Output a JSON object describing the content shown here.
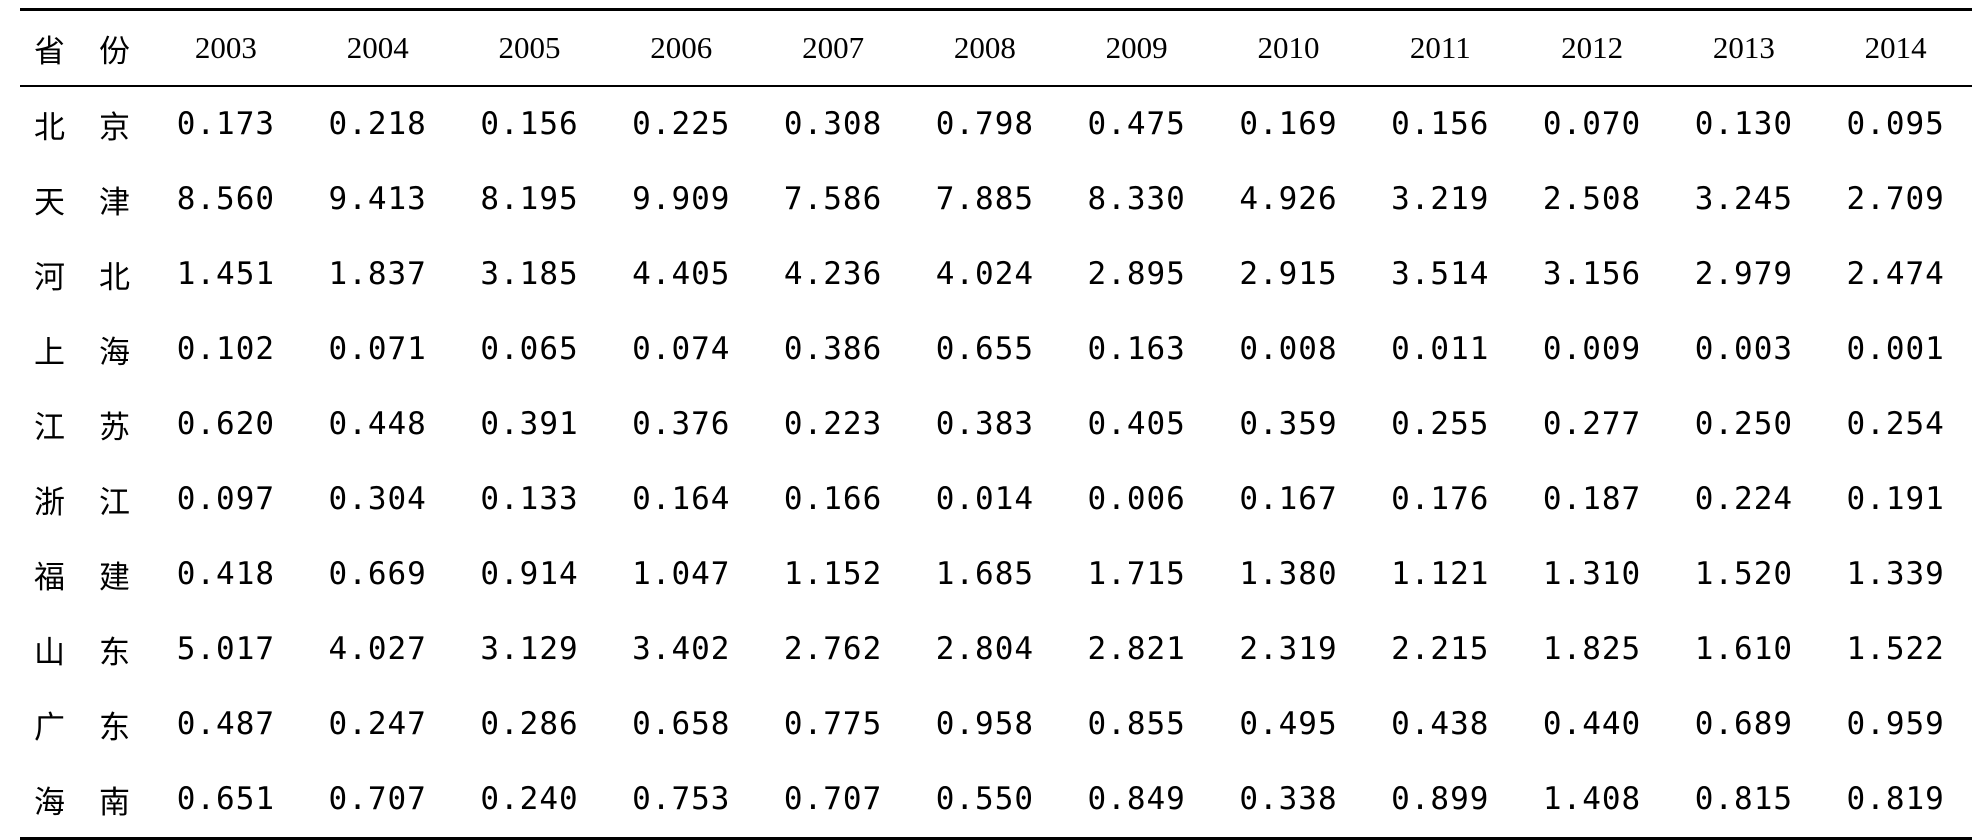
{
  "table": {
    "header": {
      "province_char1": "省",
      "province_char2": "份",
      "years": [
        "2003",
        "2004",
        "2005",
        "2006",
        "2007",
        "2008",
        "2009",
        "2010",
        "2011",
        "2012",
        "2013",
        "2014"
      ]
    },
    "rows": [
      {
        "p1": "北",
        "p2": "京",
        "values": [
          "0.173",
          "0.218",
          "0.156",
          "0.225",
          "0.308",
          "0.798",
          "0.475",
          "0.169",
          "0.156",
          "0.070",
          "0.130",
          "0.095"
        ]
      },
      {
        "p1": "天",
        "p2": "津",
        "values": [
          "8.560",
          "9.413",
          "8.195",
          "9.909",
          "7.586",
          "7.885",
          "8.330",
          "4.926",
          "3.219",
          "2.508",
          "3.245",
          "2.709"
        ]
      },
      {
        "p1": "河",
        "p2": "北",
        "values": [
          "1.451",
          "1.837",
          "3.185",
          "4.405",
          "4.236",
          "4.024",
          "2.895",
          "2.915",
          "3.514",
          "3.156",
          "2.979",
          "2.474"
        ]
      },
      {
        "p1": "上",
        "p2": "海",
        "values": [
          "0.102",
          "0.071",
          "0.065",
          "0.074",
          "0.386",
          "0.655",
          "0.163",
          "0.008",
          "0.011",
          "0.009",
          "0.003",
          "0.001"
        ]
      },
      {
        "p1": "江",
        "p2": "苏",
        "values": [
          "0.620",
          "0.448",
          "0.391",
          "0.376",
          "0.223",
          "0.383",
          "0.405",
          "0.359",
          "0.255",
          "0.277",
          "0.250",
          "0.254"
        ]
      },
      {
        "p1": "浙",
        "p2": "江",
        "values": [
          "0.097",
          "0.304",
          "0.133",
          "0.164",
          "0.166",
          "0.014",
          "0.006",
          "0.167",
          "0.176",
          "0.187",
          "0.224",
          "0.191"
        ]
      },
      {
        "p1": "福",
        "p2": "建",
        "values": [
          "0.418",
          "0.669",
          "0.914",
          "1.047",
          "1.152",
          "1.685",
          "1.715",
          "1.380",
          "1.121",
          "1.310",
          "1.520",
          "1.339"
        ]
      },
      {
        "p1": "山",
        "p2": "东",
        "values": [
          "5.017",
          "4.027",
          "3.129",
          "3.402",
          "2.762",
          "2.804",
          "2.821",
          "2.319",
          "2.215",
          "1.825",
          "1.610",
          "1.522"
        ]
      },
      {
        "p1": "广",
        "p2": "东",
        "values": [
          "0.487",
          "0.247",
          "0.286",
          "0.658",
          "0.775",
          "0.958",
          "0.855",
          "0.495",
          "0.438",
          "0.440",
          "0.689",
          "0.959"
        ]
      },
      {
        "p1": "海",
        "p2": "南",
        "values": [
          "0.651",
          "0.707",
          "0.240",
          "0.753",
          "0.707",
          "0.550",
          "0.849",
          "0.338",
          "0.899",
          "1.408",
          "0.815",
          "0.819"
        ]
      }
    ]
  }
}
